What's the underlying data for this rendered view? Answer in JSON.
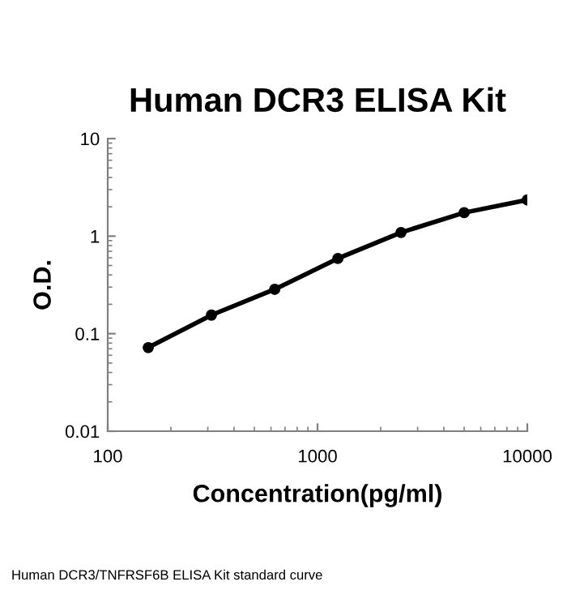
{
  "chart_data": {
    "type": "line",
    "title": "Human DCR3 ELISA Kit",
    "xlabel": "Concentration(pg/ml)",
    "ylabel": "O.D.",
    "x": [
      156,
      312,
      625,
      1250,
      2500,
      5000,
      10000
    ],
    "values": [
      0.072,
      0.155,
      0.285,
      0.59,
      1.09,
      1.74,
      2.35
    ],
    "color": "#000000",
    "marker": "circle",
    "line_style": "solid",
    "log": "xy",
    "grid": false,
    "xlim": [
      100,
      10000
    ],
    "xticks": [
      100,
      1000,
      10000
    ],
    "ylim": [
      0.01,
      10
    ],
    "yticks": [
      0.01,
      0.1,
      1,
      10
    ],
    "annotations": [
      "Human DCR3/TNFRSF6B ELISA Kit standard curve"
    ]
  }
}
